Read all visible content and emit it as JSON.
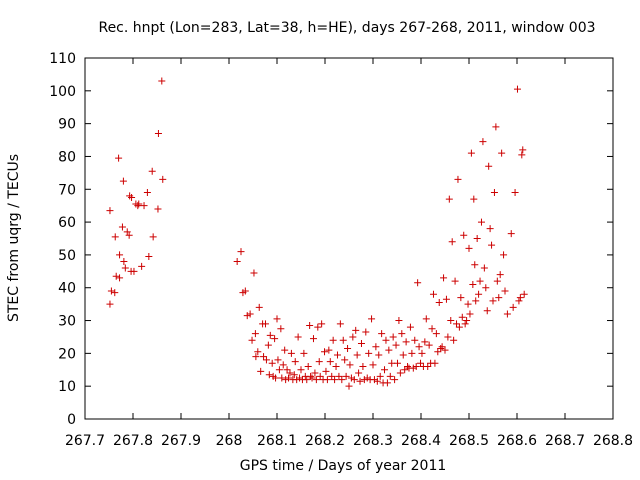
{
  "chart_data": {
    "type": "scatter",
    "title": "Rec. hnpt (Lon=283, Lat=38, h=HE), days 267-268, 2011, window 003",
    "xlabel": "GPS time / Days of year 2011",
    "ylabel": "STEC from uqrg / TECUs",
    "xlim": [
      267.7,
      268.8
    ],
    "ylim": [
      0,
      110
    ],
    "xticks": [
      "267.7",
      "267.8",
      "267.9",
      "268",
      "268.1",
      "268.2",
      "268.3",
      "268.4",
      "268.5",
      "268.6",
      "268.7",
      "268.8"
    ],
    "yticks": [
      "0",
      "10",
      "20",
      "30",
      "40",
      "50",
      "60",
      "70",
      "80",
      "90",
      "100",
      "110"
    ],
    "grid": false,
    "marker": "+",
    "color": "#cc0000",
    "points": [
      [
        267.752,
        63.5
      ],
      [
        267.752,
        35
      ],
      [
        267.755,
        39
      ],
      [
        267.762,
        38.5
      ],
      [
        267.763,
        55.5
      ],
      [
        267.765,
        43.5
      ],
      [
        267.77,
        79.5
      ],
      [
        267.772,
        43
      ],
      [
        267.772,
        50
      ],
      [
        267.778,
        58.5
      ],
      [
        267.78,
        72.5
      ],
      [
        267.781,
        48
      ],
      [
        267.784,
        46
      ],
      [
        267.788,
        57
      ],
      [
        267.792,
        56
      ],
      [
        267.793,
        68
      ],
      [
        267.796,
        45
      ],
      [
        267.797,
        67.5
      ],
      [
        267.802,
        45
      ],
      [
        267.806,
        65.5
      ],
      [
        267.81,
        65
      ],
      [
        267.812,
        65.5
      ],
      [
        267.818,
        46.5
      ],
      [
        267.823,
        65
      ],
      [
        267.83,
        69
      ],
      [
        267.833,
        49.5
      ],
      [
        267.84,
        75.5
      ],
      [
        267.842,
        55.5
      ],
      [
        267.852,
        64
      ],
      [
        267.853,
        87
      ],
      [
        267.86,
        103
      ],
      [
        267.862,
        73
      ],
      [
        268.017,
        48
      ],
      [
        268.025,
        51
      ],
      [
        268.029,
        38.5
      ],
      [
        268.034,
        39
      ],
      [
        268.038,
        31.5
      ],
      [
        268.044,
        32
      ],
      [
        268.048,
        24
      ],
      [
        268.052,
        44.5
      ],
      [
        268.055,
        26
      ],
      [
        268.056,
        19
      ],
      [
        268.06,
        20.5
      ],
      [
        268.063,
        34
      ],
      [
        268.066,
        14.5
      ],
      [
        268.07,
        29
      ],
      [
        268.072,
        19
      ],
      [
        268.076,
        29
      ],
      [
        268.078,
        18
      ],
      [
        268.082,
        22.5
      ],
      [
        268.084,
        13.5
      ],
      [
        268.086,
        25.5
      ],
      [
        268.09,
        17
      ],
      [
        268.092,
        13
      ],
      [
        268.095,
        24.5
      ],
      [
        268.097,
        12.5
      ],
      [
        268.1,
        30.5
      ],
      [
        268.102,
        18
      ],
      [
        268.105,
        15
      ],
      [
        268.108,
        27.5
      ],
      [
        268.11,
        12.5
      ],
      [
        268.113,
        16.5
      ],
      [
        268.116,
        21
      ],
      [
        268.118,
        12
      ],
      [
        268.121,
        15
      ],
      [
        268.124,
        12.5
      ],
      [
        268.127,
        14
      ],
      [
        268.13,
        20
      ],
      [
        268.133,
        12
      ],
      [
        268.136,
        13.5
      ],
      [
        268.138,
        17.5
      ],
      [
        268.141,
        12
      ],
      [
        268.144,
        25
      ],
      [
        268.147,
        12.5
      ],
      [
        268.15,
        15
      ],
      [
        268.153,
        12
      ],
      [
        268.156,
        20
      ],
      [
        268.159,
        13
      ],
      [
        268.162,
        12
      ],
      [
        268.165,
        16
      ],
      [
        268.168,
        28.5
      ],
      [
        268.17,
        13
      ],
      [
        268.173,
        12.5
      ],
      [
        268.176,
        24.5
      ],
      [
        268.179,
        14
      ],
      [
        268.182,
        12
      ],
      [
        268.185,
        28
      ],
      [
        268.188,
        17.5
      ],
      [
        268.19,
        13
      ],
      [
        268.193,
        29
      ],
      [
        268.196,
        12
      ],
      [
        268.199,
        20.5
      ],
      [
        268.202,
        14.5
      ],
      [
        268.205,
        12
      ],
      [
        268.208,
        21
      ],
      [
        268.211,
        17.5
      ],
      [
        268.214,
        13
      ],
      [
        268.217,
        24
      ],
      [
        268.22,
        12
      ],
      [
        268.223,
        16
      ],
      [
        268.226,
        19.5
      ],
      [
        268.229,
        13
      ],
      [
        268.232,
        29
      ],
      [
        268.235,
        12
      ],
      [
        268.238,
        24
      ],
      [
        268.241,
        18
      ],
      [
        268.244,
        13
      ],
      [
        268.247,
        21.5
      ],
      [
        268.25,
        10
      ],
      [
        268.252,
        16.5
      ],
      [
        268.255,
        12.5
      ],
      [
        268.258,
        25
      ],
      [
        268.261,
        12
      ],
      [
        268.264,
        27
      ],
      [
        268.267,
        19.5
      ],
      [
        268.27,
        14
      ],
      [
        268.273,
        11.5
      ],
      [
        268.276,
        23
      ],
      [
        268.279,
        16
      ],
      [
        268.282,
        12
      ],
      [
        268.285,
        26.5
      ],
      [
        268.288,
        12.5
      ],
      [
        268.291,
        20
      ],
      [
        268.294,
        12
      ],
      [
        268.297,
        30.5
      ],
      [
        268.3,
        16.5
      ],
      [
        268.303,
        12
      ],
      [
        268.306,
        22
      ],
      [
        268.309,
        11.5
      ],
      [
        268.312,
        19.5
      ],
      [
        268.315,
        13
      ],
      [
        268.318,
        26
      ],
      [
        268.321,
        11
      ],
      [
        268.324,
        15
      ],
      [
        268.327,
        24
      ],
      [
        268.33,
        11
      ],
      [
        268.333,
        21
      ],
      [
        268.336,
        13
      ],
      [
        268.339,
        17
      ],
      [
        268.342,
        25
      ],
      [
        268.345,
        12
      ],
      [
        268.348,
        22.5
      ],
      [
        268.351,
        17
      ],
      [
        268.354,
        30
      ],
      [
        268.357,
        14
      ],
      [
        268.36,
        26
      ],
      [
        268.363,
        19.5
      ],
      [
        268.366,
        15
      ],
      [
        268.369,
        23.5
      ],
      [
        268.372,
        16
      ],
      [
        268.375,
        15.5
      ],
      [
        268.378,
        28
      ],
      [
        268.381,
        20
      ],
      [
        268.384,
        15.5
      ],
      [
        268.387,
        24
      ],
      [
        268.39,
        16
      ],
      [
        268.393,
        41.5
      ],
      [
        268.396,
        22
      ],
      [
        268.399,
        17
      ],
      [
        268.402,
        20
      ],
      [
        268.405,
        16
      ],
      [
        268.408,
        23.5
      ],
      [
        268.411,
        30.5
      ],
      [
        268.414,
        16
      ],
      [
        268.417,
        22.5
      ],
      [
        268.42,
        17
      ],
      [
        268.423,
        27.5
      ],
      [
        268.426,
        38
      ],
      [
        268.429,
        17
      ],
      [
        268.432,
        26
      ],
      [
        268.435,
        20.5
      ],
      [
        268.438,
        35.5
      ],
      [
        268.441,
        21.5
      ],
      [
        268.444,
        22
      ],
      [
        268.447,
        43
      ],
      [
        268.45,
        21
      ],
      [
        268.453,
        36.5
      ],
      [
        268.456,
        25
      ],
      [
        268.459,
        67
      ],
      [
        268.462,
        30
      ],
      [
        268.465,
        54
      ],
      [
        268.468,
        24
      ],
      [
        268.471,
        42
      ],
      [
        268.474,
        29
      ],
      [
        268.477,
        73
      ],
      [
        268.48,
        28
      ],
      [
        268.483,
        37
      ],
      [
        268.486,
        31
      ],
      [
        268.489,
        56
      ],
      [
        268.492,
        29
      ],
      [
        268.495,
        30
      ],
      [
        268.498,
        35
      ],
      [
        268.5,
        52
      ],
      [
        268.502,
        32
      ],
      [
        268.505,
        81
      ],
      [
        268.508,
        41
      ],
      [
        268.51,
        67
      ],
      [
        268.512,
        47
      ],
      [
        268.514,
        36
      ],
      [
        268.517,
        55
      ],
      [
        268.52,
        38
      ],
      [
        268.523,
        42
      ],
      [
        268.526,
        60
      ],
      [
        268.529,
        84.5
      ],
      [
        268.532,
        46
      ],
      [
        268.535,
        40
      ],
      [
        268.538,
        33
      ],
      [
        268.541,
        77
      ],
      [
        268.544,
        58
      ],
      [
        268.547,
        53
      ],
      [
        268.55,
        36
      ],
      [
        268.553,
        69
      ],
      [
        268.556,
        89
      ],
      [
        268.559,
        42
      ],
      [
        268.562,
        37
      ],
      [
        268.565,
        44
      ],
      [
        268.568,
        81
      ],
      [
        268.572,
        50
      ],
      [
        268.575,
        39
      ],
      [
        268.58,
        32
      ],
      [
        268.588,
        56.5
      ],
      [
        268.592,
        34
      ],
      [
        268.596,
        69
      ],
      [
        268.601,
        100.5
      ],
      [
        268.604,
        36
      ],
      [
        268.607,
        37
      ],
      [
        268.61,
        80.5
      ],
      [
        268.612,
        82
      ],
      [
        268.615,
        38
      ]
    ]
  }
}
